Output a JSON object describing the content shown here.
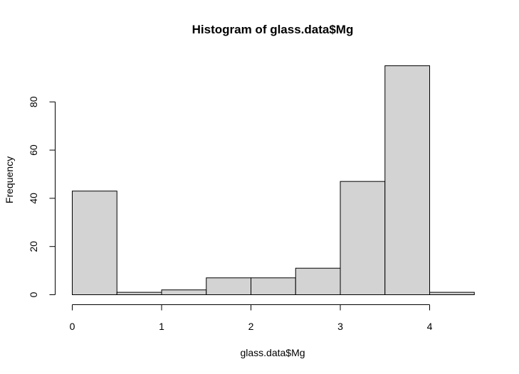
{
  "chart_data": {
    "type": "bar",
    "title": "Histogram of glass.data$Mg",
    "xlabel": "glass.data$Mg",
    "ylabel": "Frequency",
    "bins": [
      {
        "start": 0.0,
        "end": 0.5,
        "count": 43
      },
      {
        "start": 0.5,
        "end": 1.0,
        "count": 1
      },
      {
        "start": 1.0,
        "end": 1.5,
        "count": 2
      },
      {
        "start": 1.5,
        "end": 2.0,
        "count": 7
      },
      {
        "start": 2.0,
        "end": 2.5,
        "count": 7
      },
      {
        "start": 2.5,
        "end": 3.0,
        "count": 11
      },
      {
        "start": 3.0,
        "end": 3.5,
        "count": 47
      },
      {
        "start": 3.5,
        "end": 4.0,
        "count": 95
      },
      {
        "start": 4.0,
        "end": 4.5,
        "count": 1
      }
    ],
    "x_ticks": [
      0,
      1,
      2,
      3,
      4
    ],
    "y_ticks": [
      0,
      20,
      40,
      60,
      80
    ],
    "xlim": [
      0,
      4.5
    ],
    "ylim": [
      0,
      95
    ],
    "bar_color": "#d3d3d3",
    "grid": false
  }
}
